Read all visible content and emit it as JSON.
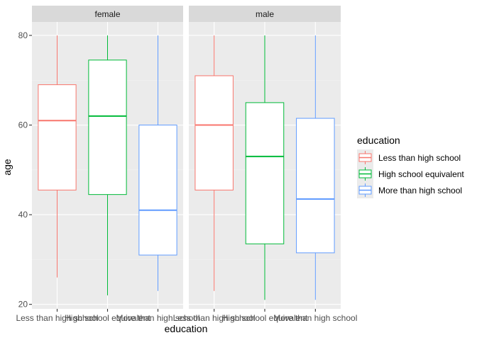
{
  "chart_data": {
    "type": "boxplot",
    "facets": [
      "female",
      "male"
    ],
    "categories": [
      "Less than high school",
      "High school equivalent",
      "More than high school"
    ],
    "colors": [
      "#f8766d",
      "#00ba38",
      "#619cff"
    ],
    "xlabel": "education",
    "ylabel": "age",
    "ylim": [
      19,
      83
    ],
    "yticks": [
      20,
      40,
      60,
      80
    ],
    "legend": {
      "title": "education",
      "entries": [
        "Less than high school",
        "High school equivalent",
        "More than high school"
      ],
      "position": "right"
    },
    "boxes": {
      "female": [
        {
          "min": 26,
          "q1": 45.5,
          "median": 61,
          "q3": 69,
          "max": 80
        },
        {
          "min": 22,
          "q1": 44.5,
          "median": 62,
          "q3": 74.5,
          "max": 80
        },
        {
          "min": 23,
          "q1": 31,
          "median": 41,
          "q3": 60,
          "max": 80
        }
      ],
      "male": [
        {
          "min": 23,
          "q1": 45.5,
          "median": 60,
          "q3": 71,
          "max": 80
        },
        {
          "min": 21,
          "q1": 33.5,
          "median": 53,
          "q3": 65,
          "max": 80
        },
        {
          "min": 21,
          "q1": 31.5,
          "median": 43.5,
          "q3": 61.5,
          "max": 80
        }
      ]
    }
  }
}
